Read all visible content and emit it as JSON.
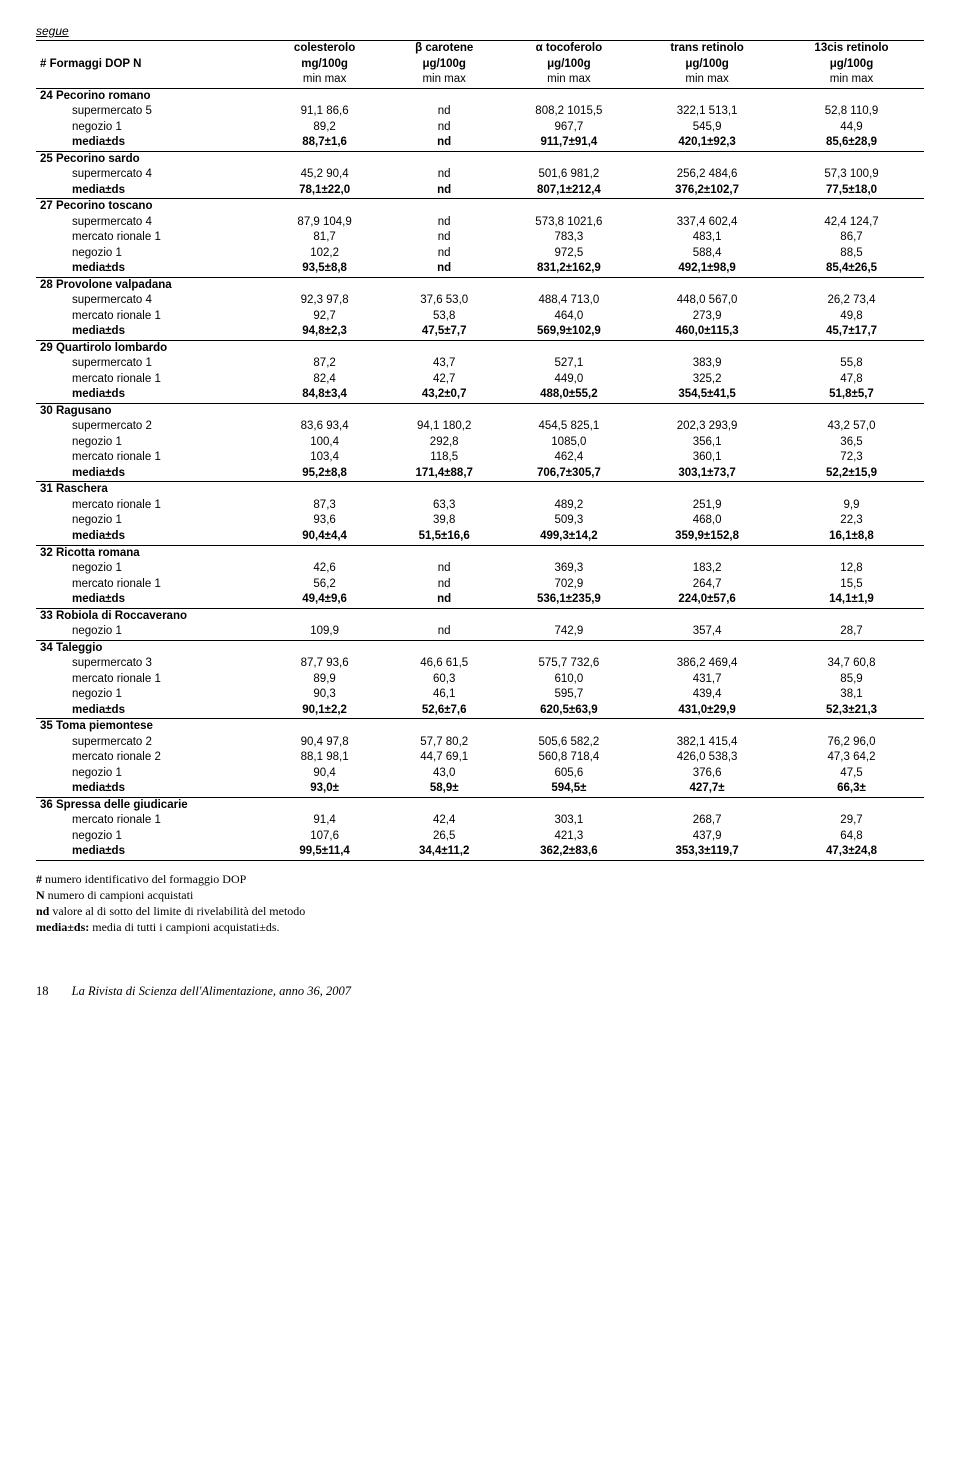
{
  "segue": "segue",
  "header": {
    "cols": [
      {
        "l1": "",
        "l2": "#  Formaggi DOP  N",
        "l3": ""
      },
      {
        "l1": "colesterolo",
        "l2": "mg/100g",
        "l3": "min    max"
      },
      {
        "l1": "β carotene",
        "l2": "μg/100g",
        "l3": "min    max"
      },
      {
        "l1": "α tocoferolo",
        "l2": "μg/100g",
        "l3": "min    max"
      },
      {
        "l1": "trans retinolo",
        "l2": "μg/100g",
        "l3": "min    max"
      },
      {
        "l1": "13cis retinolo",
        "l2": "μg/100g",
        "l3": "min    max"
      }
    ]
  },
  "groups": [
    {
      "num": "24",
      "name": "Pecorino romano",
      "rows": [
        {
          "label": "supermercato 5",
          "c": "91,1    86,6",
          "b": "nd",
          "a": "808,2 1015,5",
          "t": "322,1   513,1",
          "r": "52,8   110,9"
        },
        {
          "label": "negozio 1",
          "c": "89,2",
          "b": "nd",
          "a": "967,7",
          "t": "545,9",
          "r": "44,9"
        },
        {
          "label": "media±ds",
          "c": "88,7±1,6",
          "b": "nd",
          "a": "911,7±91,4",
          "t": "420,1±92,3",
          "r": "85,6±28,9",
          "media": true
        }
      ]
    },
    {
      "num": "25",
      "name": "Pecorino sardo",
      "rows": [
        {
          "label": "supermercato 4",
          "c": "45,2    90,4",
          "b": "nd",
          "a": "501,6   981,2",
          "t": "256,2   484,6",
          "r": "57,3   100,9"
        },
        {
          "label": "media±ds",
          "c": "78,1±22,0",
          "b": "nd",
          "a": "807,1±212,4",
          "t": "376,2±102,7",
          "r": "77,5±18,0",
          "media": true
        }
      ]
    },
    {
      "num": "27",
      "name": "Pecorino toscano",
      "rows": [
        {
          "label": "supermercato 4",
          "c": "87,9   104,9",
          "b": "nd",
          "a": "573,8 1021,6",
          "t": "337,4   602,4",
          "r": "42,4   124,7"
        },
        {
          "label": "mercato rionale 1",
          "c": "81,7",
          "b": "nd",
          "a": "783,3",
          "t": "483,1",
          "r": "86,7"
        },
        {
          "label": "negozio 1",
          "c": "102,2",
          "b": "nd",
          "a": "972,5",
          "t": "588,4",
          "r": "88,5"
        },
        {
          "label": "media±ds",
          "c": "93,5±8,8",
          "b": "nd",
          "a": "831,2±162,9",
          "t": "492,1±98,9",
          "r": "85,4±26,5",
          "media": true
        }
      ]
    },
    {
      "num": "28",
      "name": "Provolone valpadana",
      "rows": [
        {
          "label": "supermercato 4",
          "c": "92,3    97,8",
          "b": "37,6    53,0",
          "a": "488,4   713,0",
          "t": "448,0   567,0",
          "r": "26,2    73,4"
        },
        {
          "label": "mercato rionale 1",
          "c": "92,7",
          "b": "53,8",
          "a": "464,0",
          "t": "273,9",
          "r": "49,8"
        },
        {
          "label": "media±ds",
          "c": "94,8±2,3",
          "b": "47,5±7,7",
          "a": "569,9±102,9",
          "t": "460,0±115,3",
          "r": "45,7±17,7",
          "media": true
        }
      ]
    },
    {
      "num": "29",
      "name": "Quartirolo lombardo",
      "rows": [
        {
          "label": "supermercato 1",
          "c": "87,2",
          "b": "43,7",
          "a": "527,1",
          "t": "383,9",
          "r": "55,8"
        },
        {
          "label": "mercato rionale 1",
          "c": "82,4",
          "b": "42,7",
          "a": "449,0",
          "t": "325,2",
          "r": "47,8"
        },
        {
          "label": "media±ds",
          "c": "84,8±3,4",
          "b": "43,2±0,7",
          "a": "488,0±55,2",
          "t": "354,5±41,5",
          "r": "51,8±5,7",
          "media": true
        }
      ]
    },
    {
      "num": "30",
      "name": "Ragusano",
      "rows": [
        {
          "label": "supermercato 2",
          "c": "83,6    93,4",
          "b": "94,1   180,2",
          "a": "454,5   825,1",
          "t": "202,3   293,9",
          "r": "43,2    57,0"
        },
        {
          "label": "negozio 1",
          "c": "100,4",
          "b": "292,8",
          "a": "1085,0",
          "t": "356,1",
          "r": "36,5"
        },
        {
          "label": "mercato rionale 1",
          "c": "103,4",
          "b": "118,5",
          "a": "462,4",
          "t": "360,1",
          "r": "72,3"
        },
        {
          "label": "media±ds",
          "c": "95,2±8,8",
          "b": "171,4±88,7",
          "a": "706,7±305,7",
          "t": "303,1±73,7",
          "r": "52,2±15,9",
          "media": true
        }
      ]
    },
    {
      "num": "31",
      "name": "Raschera",
      "rows": [
        {
          "label": "mercato rionale 1",
          "c": "87,3",
          "b": "63,3",
          "a": "489,2",
          "t": "251,9",
          "r": "9,9"
        },
        {
          "label": "negozio 1",
          "c": "93,6",
          "b": "39,8",
          "a": "509,3",
          "t": "468,0",
          "r": "22,3"
        },
        {
          "label": "media±ds",
          "c": "90,4±4,4",
          "b": "51,5±16,6",
          "a": "499,3±14,2",
          "t": "359,9±152,8",
          "r": "16,1±8,8",
          "media": true
        }
      ]
    },
    {
      "num": "32",
      "name": "Ricotta romana",
      "rows": [
        {
          "label": "negozio 1",
          "c": "42,6",
          "b": "nd",
          "a": "369,3",
          "t": "183,2",
          "r": "12,8"
        },
        {
          "label": "mercato rionale 1",
          "c": "56,2",
          "b": "nd",
          "a": "702,9",
          "t": "264,7",
          "r": "15,5"
        },
        {
          "label": "media±ds",
          "c": "49,4±9,6",
          "b": "nd",
          "a": "536,1±235,9",
          "t": "224,0±57,6",
          "r": "14,1±1,9",
          "media": true
        }
      ]
    },
    {
      "num": "33",
      "name": "Robiola di Roccaverano",
      "rows": [
        {
          "label": "negozio 1",
          "c": "109,9",
          "b": "nd",
          "a": "742,9",
          "t": "357,4",
          "r": "28,7",
          "sep": true
        }
      ]
    },
    {
      "num": "34",
      "name": "Taleggio",
      "rows": [
        {
          "label": "supermercato 3",
          "c": "87,7    93,6",
          "b": "46,6    61,5",
          "a": "575,7   732,6",
          "t": "386,2   469,4",
          "r": "34,7    60,8"
        },
        {
          "label": "mercato rionale 1",
          "c": "89,9",
          "b": "60,3",
          "a": "610,0",
          "t": "431,7",
          "r": "85,9"
        },
        {
          "label": "negozio 1",
          "c": "90,3",
          "b": "46,1",
          "a": "595,7",
          "t": "439,4",
          "r": "38,1"
        },
        {
          "label": "media±ds",
          "c": "90,1±2,2",
          "b": "52,6±7,6",
          "a": "620,5±63,9",
          "t": "431,0±29,9",
          "r": "52,3±21,3",
          "media": true
        }
      ]
    },
    {
      "num": "35",
      "name": "Toma piemontese",
      "rows": [
        {
          "label": "supermercato 2",
          "c": "90,4    97,8",
          "b": "57,7    80,2",
          "a": "505,6   582,2",
          "t": "382,1   415,4",
          "r": "76,2    96,0"
        },
        {
          "label": "mercato rionale 2",
          "c": "88,1    98,1",
          "b": "44,7    69,1",
          "a": "560,8   718,4",
          "t": "426,0   538,3",
          "r": "47,3    64,2"
        },
        {
          "label": "negozio 1",
          "c": "90,4",
          "b": "43,0",
          "a": "605,6",
          "t": "376,6",
          "r": "47,5"
        },
        {
          "label": "media±ds",
          "c": "93,0±",
          "b": "58,9±",
          "a": "594,5±",
          "t": "427,7±",
          "r": "66,3±",
          "media": true
        }
      ]
    },
    {
      "num": "36",
      "name": "Spressa delle giudicarie",
      "rows": [
        {
          "label": "mercato rionale 1",
          "c": "91,4",
          "b": "42,4",
          "a": "303,1",
          "t": "268,7",
          "r": "29,7"
        },
        {
          "label": "negozio 1",
          "c": "107,6",
          "b": "26,5",
          "a": "421,3",
          "t": "437,9",
          "r": "64,8"
        },
        {
          "label": "media±ds",
          "c": "99,5±11,4",
          "b": "34,4±11,2",
          "a": "362,2±83,6",
          "t": "353,3±119,7",
          "r": "47,3±24,8",
          "media": true,
          "final": true
        }
      ]
    }
  ],
  "footnotes": [
    {
      "b": "#",
      "t": " numero identificativo del formaggio DOP"
    },
    {
      "b": "N",
      "t": " numero di campioni acquistati"
    },
    {
      "b": "nd",
      "t": " valore al di sotto del limite di rivelabilità del metodo"
    },
    {
      "b": "media±ds:",
      "t": " media di tutti i campioni acquistati±ds."
    }
  ],
  "footer": {
    "page": "18",
    "text": "La Rivista di Scienza dell'Alimentazione, anno 36, 2007"
  }
}
